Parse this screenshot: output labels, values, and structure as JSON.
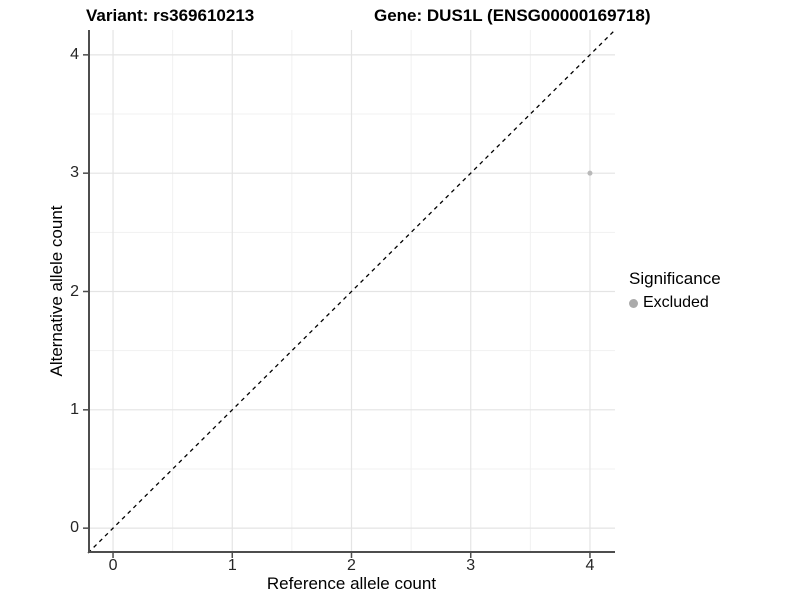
{
  "chart_data": {
    "type": "scatter",
    "title_left": "Variant: rs369610213",
    "title_right": "Gene: DUS1L (ENSG00000169718)",
    "xlabel": "Reference allele count",
    "ylabel": "Alternative allele count",
    "xlim": [
      -0.21,
      4.21
    ],
    "ylim": [
      -0.21,
      4.21
    ],
    "x_ticks": [
      0,
      1,
      2,
      3,
      4
    ],
    "y_ticks": [
      0,
      1,
      2,
      3,
      4
    ],
    "x_minor_ticks": [
      0.5,
      1.5,
      2.5,
      3.5
    ],
    "y_minor_ticks": [
      0.5,
      1.5,
      2.5,
      3.5
    ],
    "grid": {
      "on": true,
      "major_color": "#e4e4e4",
      "minor_color": "#f1f1f1"
    },
    "axis_color": "#4d4d4d",
    "identity_line": {
      "from": [
        -0.21,
        -0.21
      ],
      "to": [
        4.21,
        4.21
      ],
      "color": "#000000",
      "style": "dashed"
    },
    "points": [
      {
        "x": 4,
        "y": 3,
        "significance": "Excluded",
        "color": "#b9b9b9",
        "radius": 2.5
      }
    ],
    "legend": {
      "title": "Significance",
      "position": "right",
      "entries": [
        {
          "label": "Excluded",
          "color": "#ababab"
        }
      ]
    }
  }
}
